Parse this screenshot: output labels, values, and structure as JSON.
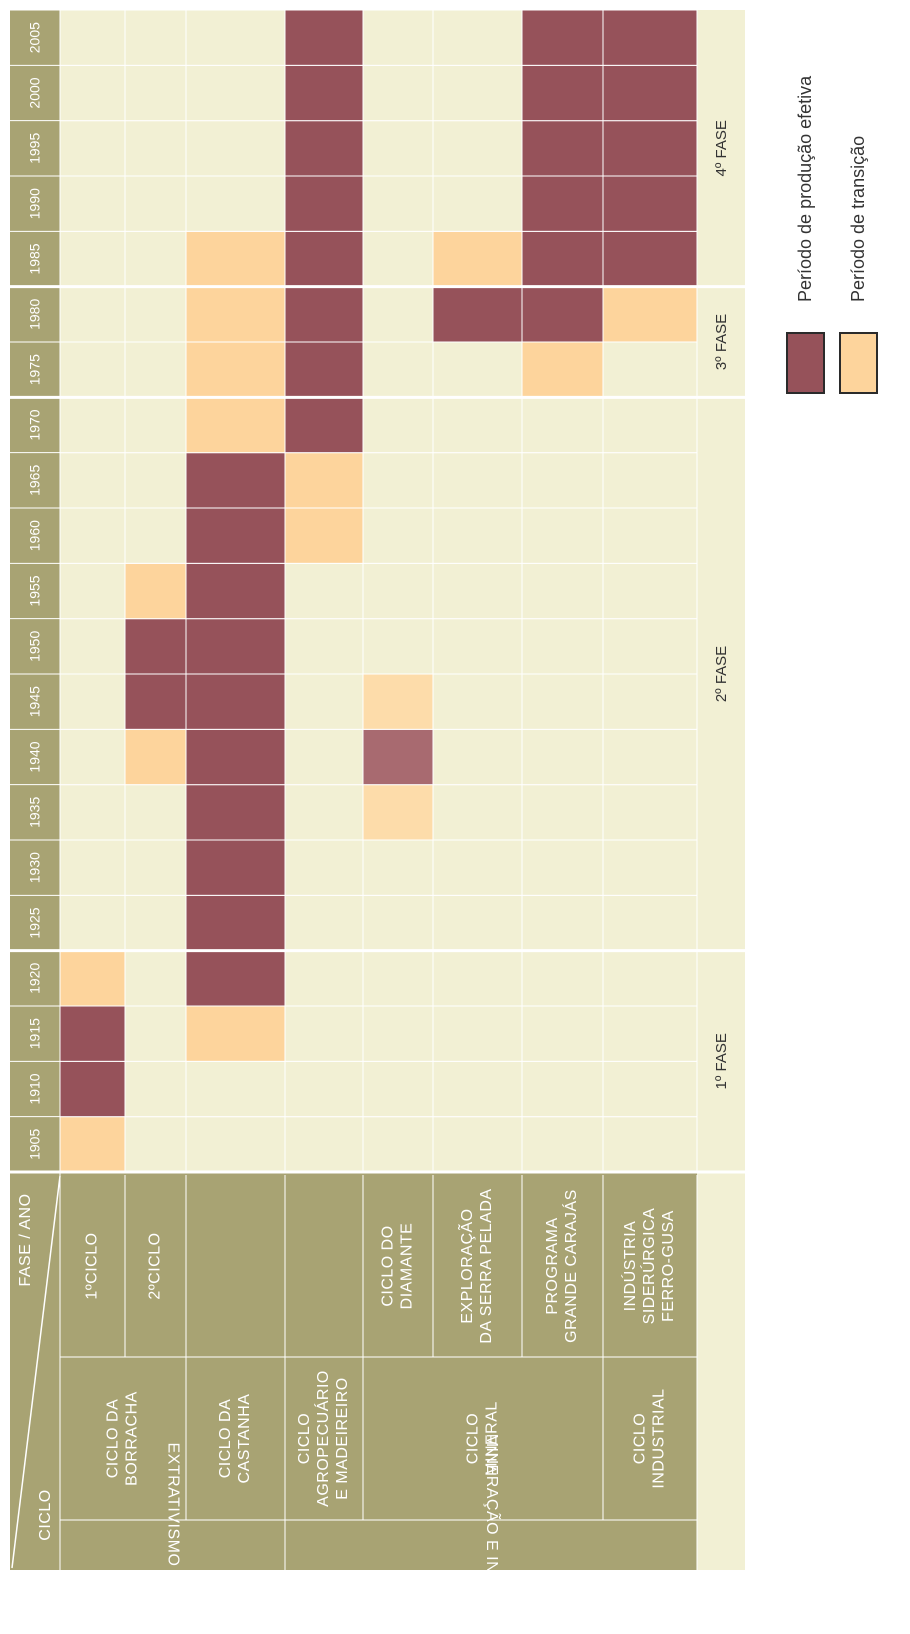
{
  "header": {
    "ciclo": "CICLO",
    "fase_ano": "FASE / ANO"
  },
  "years": [
    1905,
    1910,
    1915,
    1920,
    1925,
    1930,
    1935,
    1940,
    1945,
    1950,
    1955,
    1960,
    1965,
    1970,
    1975,
    1980,
    1985,
    1990,
    1995,
    2000,
    2005
  ],
  "phases": [
    {
      "label": "1º FASE",
      "first_year": 1905,
      "last_year": 1920
    },
    {
      "label": "2º FASE",
      "first_year": 1925,
      "last_year": 1970
    },
    {
      "label": "3º FASE",
      "first_year": 1975,
      "last_year": 1980
    },
    {
      "label": "4º FASE",
      "first_year": 1985,
      "last_year": 2005
    }
  ],
  "groups": [
    {
      "label": "EXTRATIVISMO VEGETAL"
    },
    {
      "label": "MINERAÇÃO E INDUSTRIAL"
    }
  ],
  "cycles": [
    {
      "lines": [
        "CICLO DA",
        "BORRACHA"
      ]
    },
    {
      "lines": [
        "CICLO DA",
        "CASTANHA"
      ]
    },
    {
      "lines": [
        "CICLO",
        "AGROPECUÁRIO",
        "E MADEIREIRO"
      ]
    },
    {
      "lines": [
        "CICLO",
        "MINERAL"
      ]
    },
    {
      "lines": [
        "CICLO",
        "INDUSTRIAL"
      ]
    }
  ],
  "rows": [
    {
      "lines": [
        "1ºCICLO"
      ],
      "cells": [
        "#fdd49c",
        "#96525a",
        "#96525a",
        "#fdd49c",
        null,
        null,
        null,
        null,
        null,
        null,
        null,
        null,
        null,
        null,
        null,
        null,
        null,
        null,
        null,
        null,
        null
      ]
    },
    {
      "lines": [
        "2ºCICLO"
      ],
      "cells": [
        null,
        null,
        null,
        null,
        null,
        null,
        null,
        "#fdd49c",
        "#96525a",
        "#96525a",
        "#fdd49c",
        null,
        null,
        null,
        null,
        null,
        null,
        null,
        null,
        null,
        null
      ]
    },
    {
      "lines": [],
      "cells": [
        null,
        null,
        "#fdd49c",
        "#96525a",
        "#96525a",
        "#96525a",
        "#96525a",
        "#96525a",
        "#96525a",
        "#96525a",
        "#96525a",
        "#96525a",
        "#96525a",
        "#fdd49c",
        "#fdd49c",
        "#fdd49c",
        "#fdd49c",
        null,
        null,
        null,
        null
      ]
    },
    {
      "lines": [],
      "cells": [
        null,
        null,
        null,
        null,
        null,
        null,
        null,
        null,
        null,
        null,
        null,
        "#fdd49c",
        "#fdd49c",
        "#96525a",
        "#96525a",
        "#96525a",
        "#96525a",
        "#96525a",
        "#96525a",
        "#96525a",
        "#96525a"
      ]
    },
    {
      "lines": [
        "CICLO DO",
        "DIAMANTE"
      ],
      "cells": [
        null,
        null,
        null,
        null,
        null,
        null,
        "#fddcaa",
        "#a86a70",
        "#fddcaa",
        null,
        null,
        null,
        null,
        null,
        null,
        null,
        null,
        null,
        null,
        null,
        null
      ]
    },
    {
      "lines": [
        "EXPLORAÇÃO",
        "DA SERRA PELADA"
      ],
      "cells": [
        null,
        null,
        null,
        null,
        null,
        null,
        null,
        null,
        null,
        null,
        null,
        null,
        null,
        null,
        null,
        "#96525a",
        "#fdd49c",
        null,
        null,
        null,
        null
      ]
    },
    {
      "lines": [
        "PROGRAMA",
        "GRANDE CARAJÁS"
      ],
      "cells": [
        null,
        null,
        null,
        null,
        null,
        null,
        null,
        null,
        null,
        null,
        null,
        null,
        null,
        null,
        "#fdd49c",
        "#96525a",
        "#96525a",
        "#96525a",
        "#96525a",
        "#96525a",
        "#96525a"
      ]
    },
    {
      "lines": [
        "INDÚSTRIA",
        "SIDERÚRGICA",
        "FERRO-GUSA"
      ],
      "cells": [
        null,
        null,
        null,
        null,
        null,
        null,
        null,
        null,
        null,
        null,
        null,
        null,
        null,
        null,
        null,
        "#fdd49c",
        "#96525a",
        "#96525a",
        "#96525a",
        "#96525a",
        "#96525a"
      ]
    }
  ],
  "legend": [
    {
      "label": "Período de produção efetiva",
      "color": "#96525a"
    },
    {
      "label": "Período de transição",
      "color": "#fdd49c"
    }
  ]
}
